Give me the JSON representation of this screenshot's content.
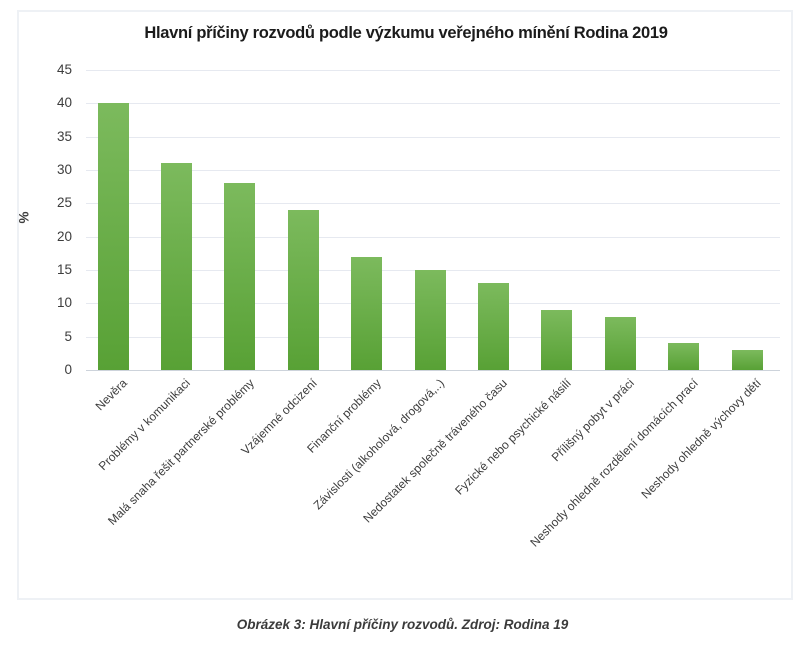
{
  "figure": {
    "caption": "Obrázek 3: Hlavní příčiny rozvodů. Zdroj: Rodina 19"
  },
  "chart_data": {
    "type": "bar",
    "title": "Hlavní příčiny rozvodů podle výzkumu veřejného mínění Rodina 2019",
    "xlabel": "",
    "ylabel": "%",
    "ylim": [
      0,
      45
    ],
    "ytick_step": 5,
    "ytick_labels": [
      "0",
      "5",
      "10",
      "15",
      "20",
      "25",
      "30",
      "35",
      "40",
      "45"
    ],
    "grid": true,
    "legend": "none",
    "categories": [
      "Nevěra",
      "Problémy v komunikaci",
      "Malá snaha řešit partnerské problémy",
      "Vzájemné odcizení",
      "Finanční problémy",
      "Závislosti (alkoholová, drogová,..)",
      "Nedostatek společně tráveného času",
      "Fyzické nebo psychické násilí",
      "Přílišný pobyt v práci",
      "Neshody ohledně rozdělení domácích prací",
      "Neshody ohledně výchovy dětí"
    ],
    "values": [
      40,
      31,
      28,
      24,
      17,
      15,
      13,
      9,
      8,
      4,
      3
    ],
    "colors": {
      "bar_top": "#7cba5d",
      "bar_bottom": "#58a135",
      "gridline": "#e6e9f0",
      "zero_line": "#cdd3db",
      "text": "#3d3d3d",
      "title_text": "#1b1b1b",
      "figure_border": "#eef1f5"
    }
  }
}
